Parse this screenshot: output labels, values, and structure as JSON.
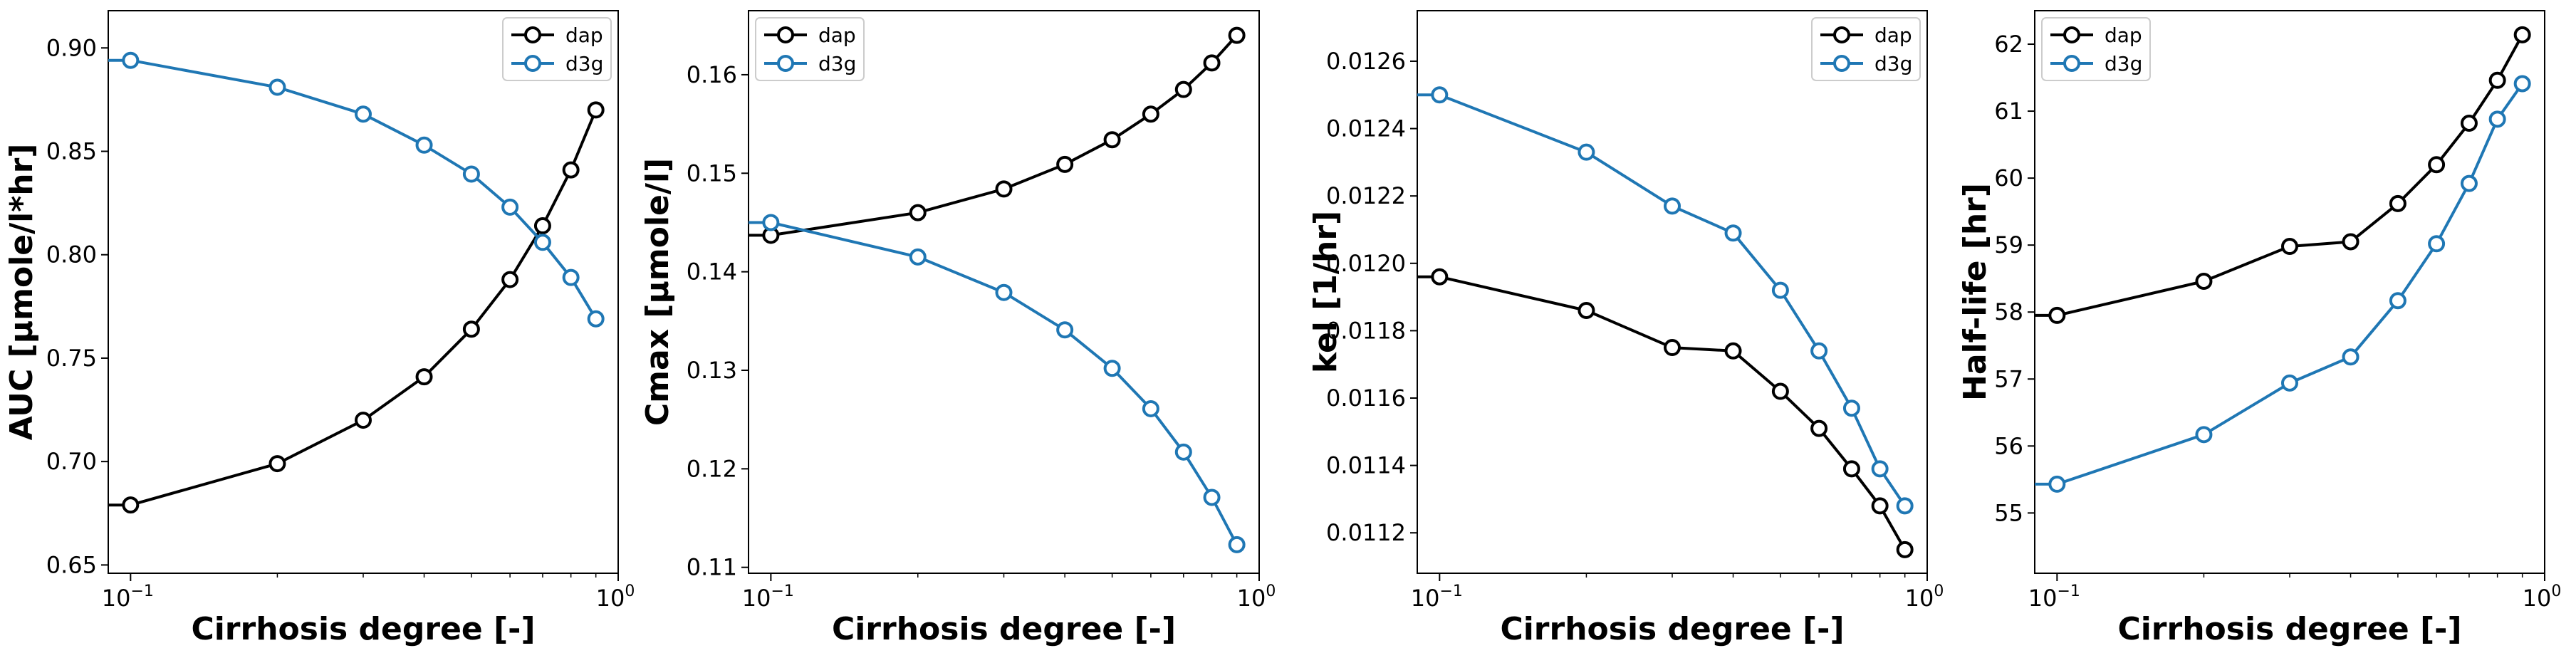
{
  "colors": {
    "dap": "#000000",
    "d3g": "#1f77b4"
  },
  "chart_data": [
    {
      "type": "line",
      "xlabel": "Cirrhosis degree [-]",
      "ylabel": "AUC [µmole/l*hr]",
      "xscale": "log",
      "xlim": [
        0.09,
        1.0
      ],
      "xticks": [
        {
          "value": 0.1,
          "base": "10",
          "exp": "−1"
        },
        {
          "value": 1.0,
          "base": "10",
          "exp": "0"
        }
      ],
      "ylim": [
        0.646,
        0.918
      ],
      "yticks": [
        "0.65",
        "0.70",
        "0.75",
        "0.80",
        "0.85",
        "0.90"
      ],
      "x": [
        0.1,
        0.2,
        0.3,
        0.4,
        0.5,
        0.6,
        0.7,
        0.8,
        0.9
      ],
      "legend": "top-right",
      "series": [
        {
          "name": "dap",
          "color_key": "dap",
          "edge_value": 0.679,
          "values": [
            0.679,
            0.699,
            0.72,
            0.741,
            0.764,
            0.788,
            0.814,
            0.841,
            0.87
          ]
        },
        {
          "name": "d3g",
          "color_key": "d3g",
          "edge_value": 0.894,
          "values": [
            0.894,
            0.881,
            0.868,
            0.853,
            0.839,
            0.823,
            0.806,
            0.789,
            0.769
          ]
        }
      ]
    },
    {
      "type": "line",
      "xlabel": "Cirrhosis degree [-]",
      "ylabel": "Cmax [µmole/l]",
      "xscale": "log",
      "xlim": [
        0.09,
        1.0
      ],
      "xticks": [
        {
          "value": 0.1,
          "base": "10",
          "exp": "−1"
        },
        {
          "value": 1.0,
          "base": "10",
          "exp": "0"
        }
      ],
      "ylim": [
        0.1094,
        0.1665
      ],
      "yticks": [
        "0.11",
        "0.12",
        "0.13",
        "0.14",
        "0.15",
        "0.16"
      ],
      "x": [
        0.1,
        0.2,
        0.3,
        0.4,
        0.5,
        0.6,
        0.7,
        0.8,
        0.9
      ],
      "legend": "top-left",
      "series": [
        {
          "name": "dap",
          "color_key": "dap",
          "edge_value": 0.1437,
          "values": [
            0.1437,
            0.146,
            0.1484,
            0.1509,
            0.1534,
            0.156,
            0.1585,
            0.1612,
            0.164
          ]
        },
        {
          "name": "d3g",
          "color_key": "d3g",
          "edge_value": 0.145,
          "values": [
            0.145,
            0.1415,
            0.1379,
            0.1341,
            0.1302,
            0.1261,
            0.1217,
            0.1171,
            0.1123
          ]
        }
      ]
    },
    {
      "type": "line",
      "xlabel": "Cirrhosis degree [-]",
      "ylabel": "kel [1/hr]",
      "xscale": "log",
      "xlim": [
        0.09,
        1.0
      ],
      "xticks": [
        {
          "value": 0.1,
          "base": "10",
          "exp": "−1"
        },
        {
          "value": 1.0,
          "base": "10",
          "exp": "0"
        }
      ],
      "ylim": [
        0.01108,
        0.01275
      ],
      "yticks": [
        "0.0112",
        "0.0114",
        "0.0116",
        "0.0118",
        "0.0120",
        "0.0122",
        "0.0124",
        "0.0126"
      ],
      "x": [
        0.1,
        0.2,
        0.3,
        0.4,
        0.5,
        0.6,
        0.7,
        0.8,
        0.9
      ],
      "legend": "top-right",
      "series": [
        {
          "name": "dap",
          "color_key": "dap",
          "edge_value": 0.01196,
          "values": [
            0.01196,
            0.01186,
            0.01175,
            0.01174,
            0.01162,
            0.01151,
            0.01139,
            0.01128,
            0.01115
          ]
        },
        {
          "name": "d3g",
          "color_key": "d3g",
          "edge_value": 0.0125,
          "values": [
            0.0125,
            0.01233,
            0.01217,
            0.01209,
            0.01192,
            0.01174,
            0.01157,
            0.01139,
            0.01128
          ]
        }
      ]
    },
    {
      "type": "line",
      "xlabel": "Cirrhosis degree [-]",
      "ylabel": "Half-life [hr]",
      "xscale": "log",
      "xlim": [
        0.09,
        1.0
      ],
      "xticks": [
        {
          "value": 0.1,
          "base": "10",
          "exp": "−1"
        },
        {
          "value": 1.0,
          "base": "10",
          "exp": "0"
        }
      ],
      "ylim": [
        54.1,
        62.5
      ],
      "yticks": [
        "55",
        "56",
        "57",
        "58",
        "59",
        "60",
        "61",
        "62"
      ],
      "x": [
        0.1,
        0.2,
        0.3,
        0.4,
        0.5,
        0.6,
        0.7,
        0.8,
        0.9
      ],
      "legend": "top-left",
      "series": [
        {
          "name": "dap",
          "color_key": "dap",
          "edge_value": 57.95,
          "values": [
            57.95,
            58.46,
            58.98,
            59.05,
            59.62,
            60.2,
            60.82,
            61.46,
            62.14
          ]
        },
        {
          "name": "d3g",
          "color_key": "d3g",
          "edge_value": 55.43,
          "values": [
            55.43,
            56.17,
            56.94,
            57.33,
            58.17,
            59.02,
            59.92,
            60.88,
            61.41
          ]
        }
      ]
    }
  ]
}
